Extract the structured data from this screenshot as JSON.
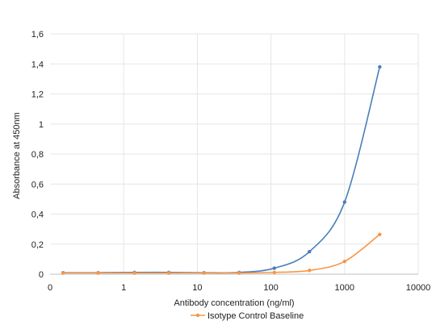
{
  "chart_data": {
    "type": "line",
    "title": "",
    "xlabel": "Antibody concentration (ng/ml)",
    "ylabel": "Absorbance at 450nm",
    "x_scale": "log",
    "xlim": [
      0.1,
      10000
    ],
    "ylim": [
      0,
      1.6
    ],
    "x_ticks": [
      0.1,
      1,
      10,
      100,
      1000,
      10000
    ],
    "x_tick_labels": [
      "0",
      "1",
      "10",
      "100",
      "1000",
      "10000"
    ],
    "y_ticks": [
      0,
      0.2,
      0.4,
      0.6,
      0.8,
      1,
      1.2,
      1.4,
      1.6
    ],
    "y_tick_labels": [
      "0",
      "0,2",
      "0,4",
      "0,6",
      "0,8",
      "1",
      "1,2",
      "1,4",
      "1,6"
    ],
    "grid": true,
    "legend_position": "bottom",
    "series": [
      {
        "name": "",
        "color": "#4a7ebb",
        "x": [
          0.15,
          0.45,
          1.4,
          4.1,
          12.3,
          37,
          111,
          333,
          1000,
          3000
        ],
        "y": [
          0.01,
          0.01,
          0.012,
          0.012,
          0.01,
          0.012,
          0.04,
          0.15,
          0.48,
          1.38
        ]
      },
      {
        "name": "Isotype Control Baseline",
        "color": "#f79646",
        "x": [
          0.15,
          0.45,
          1.4,
          4.1,
          12.3,
          37,
          111,
          333,
          1000,
          3000
        ],
        "y": [
          0.008,
          0.008,
          0.008,
          0.008,
          0.008,
          0.008,
          0.012,
          0.025,
          0.085,
          0.265
        ]
      }
    ]
  }
}
